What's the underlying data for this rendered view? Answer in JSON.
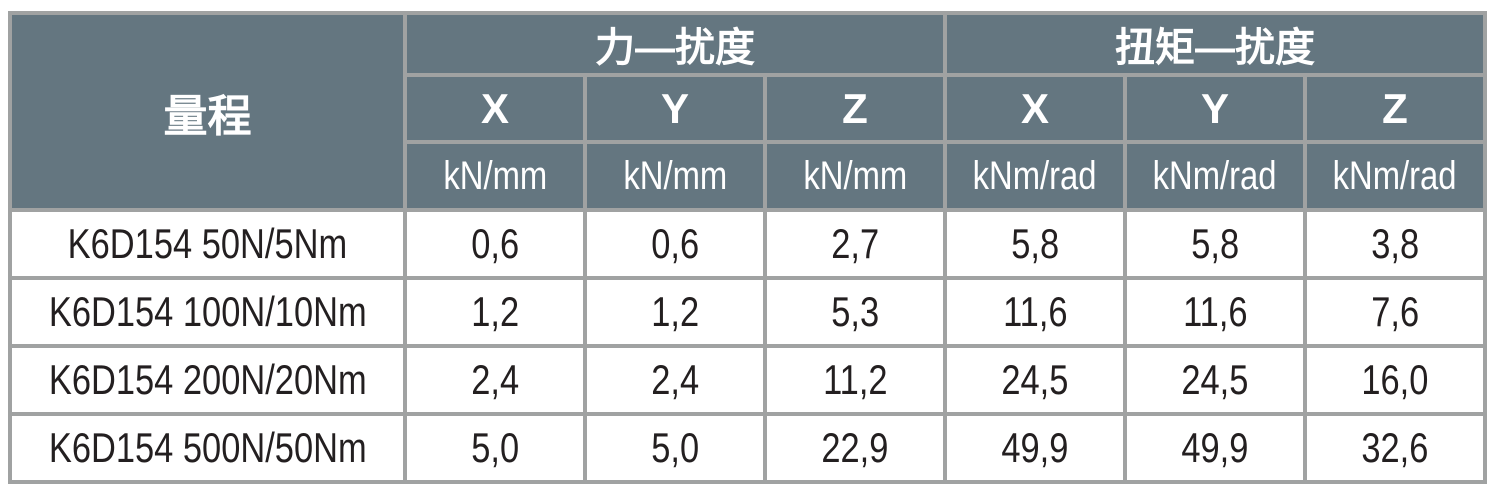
{
  "colors": {
    "header_bg": "#647680",
    "grid": "#a0a2a2",
    "header_text": "#ffffff",
    "body_text": "#231f20"
  },
  "header": {
    "range_label": "量程",
    "groups": [
      "力—扰度",
      "扭矩—扰度"
    ],
    "axes": [
      "X",
      "Y",
      "Z",
      "X",
      "Y",
      "Z"
    ],
    "units": [
      "kN/mm",
      "kN/mm",
      "kN/mm",
      "kNm/rad",
      "kNm/rad",
      "kNm/rad"
    ]
  },
  "rows": [
    {
      "model": "K6D154 50N/5Nm",
      "values": [
        "0,6",
        "0,6",
        "2,7",
        "5,8",
        "5,8",
        "3,8"
      ]
    },
    {
      "model": "K6D154 100N/10Nm",
      "values": [
        "1,2",
        "1,2",
        "5,3",
        "11,6",
        "11,6",
        "7,6"
      ]
    },
    {
      "model": "K6D154 200N/20Nm",
      "values": [
        "2,4",
        "2,4",
        "11,2",
        "24,5",
        "24,5",
        "16,0"
      ]
    },
    {
      "model": "K6D154 500N/50Nm",
      "values": [
        "5,0",
        "5,0",
        "22,9",
        "49,9",
        "49,9",
        "32,6"
      ]
    }
  ]
}
